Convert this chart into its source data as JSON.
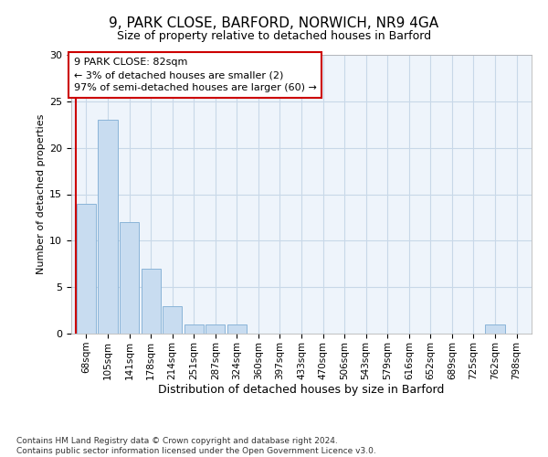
{
  "title_line1": "9, PARK CLOSE, BARFORD, NORWICH, NR9 4GA",
  "title_line2": "Size of property relative to detached houses in Barford",
  "xlabel": "Distribution of detached houses by size in Barford",
  "ylabel": "Number of detached properties",
  "footer_line1": "Contains HM Land Registry data © Crown copyright and database right 2024.",
  "footer_line2": "Contains public sector information licensed under the Open Government Licence v3.0.",
  "annotation_line1": "9 PARK CLOSE: 82sqm",
  "annotation_line2": "← 3% of detached houses are smaller (2)",
  "annotation_line3": "97% of semi-detached houses are larger (60) →",
  "bar_labels": [
    "68sqm",
    "105sqm",
    "141sqm",
    "178sqm",
    "214sqm",
    "251sqm",
    "287sqm",
    "324sqm",
    "360sqm",
    "397sqm",
    "433sqm",
    "470sqm",
    "506sqm",
    "543sqm",
    "579sqm",
    "616sqm",
    "652sqm",
    "689sqm",
    "725sqm",
    "762sqm",
    "798sqm"
  ],
  "bar_values": [
    14,
    23,
    12,
    7,
    3,
    1,
    1,
    1,
    0,
    0,
    0,
    0,
    0,
    0,
    0,
    0,
    0,
    0,
    0,
    1,
    0
  ],
  "bar_color": "#c8dcf0",
  "bar_edgecolor": "#8ab4d8",
  "annotation_box_edgecolor": "#cc0000",
  "annotation_box_facecolor": "#ffffff",
  "ylim": [
    0,
    30
  ],
  "yticks": [
    0,
    5,
    10,
    15,
    20,
    25,
    30
  ],
  "grid_color": "#c8d8e8",
  "plot_bg_color": "#eef4fb",
  "red_line_color": "#cc0000",
  "title1_fontsize": 11,
  "title2_fontsize": 9,
  "ylabel_fontsize": 8,
  "xlabel_fontsize": 9,
  "tick_fontsize": 8,
  "xtick_fontsize": 7.5,
  "footer_fontsize": 6.5
}
